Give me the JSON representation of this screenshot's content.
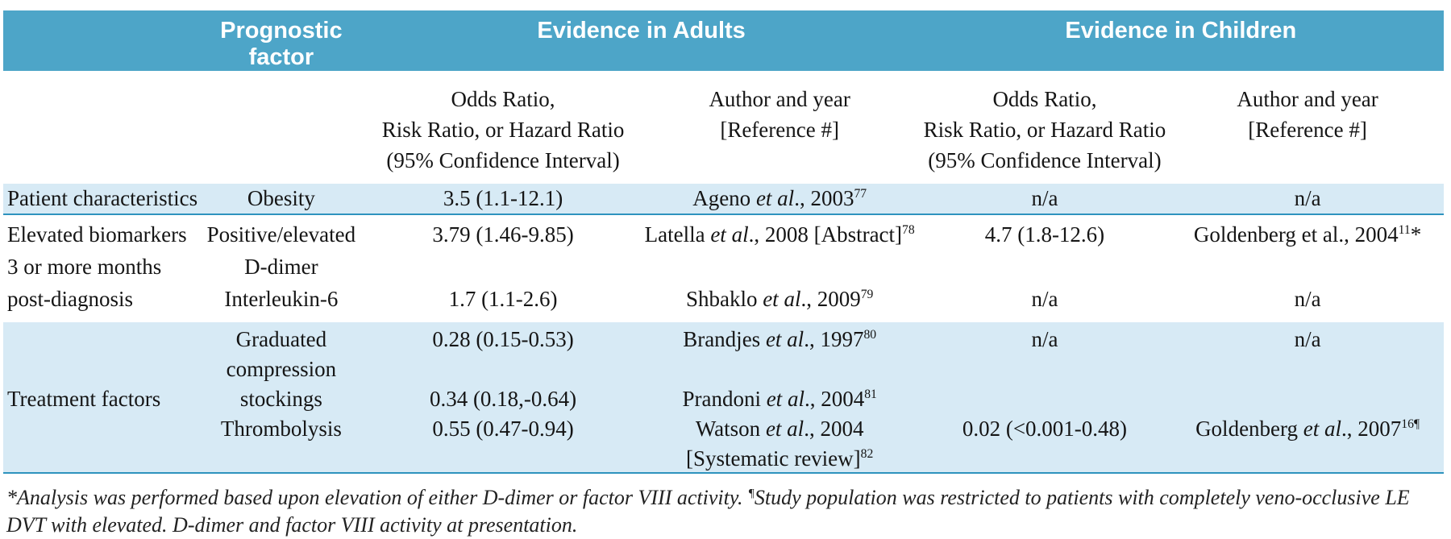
{
  "header": {
    "prognostic_line1": "Prognostic",
    "prognostic_line2": "factor",
    "evidence_adults": "Evidence in Adults",
    "evidence_children": "Evidence in Children"
  },
  "subheader": {
    "ratio_lines": [
      "Odds Ratio,",
      "Risk Ratio, or Hazard Ratio",
      "(95% Confidence Interval)"
    ],
    "author_lines": [
      "Author and year",
      "[Reference #]"
    ]
  },
  "colors": {
    "header_teal": "#4da5c8",
    "row_light_blue": "#d7eaf5",
    "divider_blue": "#2e93be"
  },
  "rows": {
    "patient": {
      "group": "Patient characteristics",
      "factor": "Obesity",
      "or_adults": "3.5 (1.1-12.1)",
      "author_adults": [
        {
          "t": "Ageno "
        },
        {
          "t": "et al",
          "s": "i"
        },
        {
          "t": "., 2003"
        },
        {
          "t": "77",
          "s": "sup"
        }
      ],
      "or_children": "n/a",
      "author_children": "n/a"
    },
    "biomarkers": {
      "lines": [
        {
          "group": "Elevated biomarkers",
          "factor": "Positive/elevated",
          "or_adults": "3.79 (1.46-9.85)",
          "author_adults": [
            {
              "t": "Latella "
            },
            {
              "t": "et al",
              "s": "i"
            },
            {
              "t": "., 2008 [Abstract]"
            },
            {
              "t": "78",
              "s": "sup"
            }
          ],
          "or_children": "4.7 (1.8-12.6)",
          "author_children": [
            {
              "t": "Goldenberg et al., 2004"
            },
            {
              "t": "11",
              "s": "sup"
            },
            {
              "t": "*"
            }
          ]
        },
        {
          "group": "3 or more months",
          "factor": "D-dimer"
        },
        {
          "group": "post-diagnosis",
          "factor": "Interleukin-6",
          "or_adults": "1.7 (1.1-2.6)",
          "author_adults": [
            {
              "t": "Shbaklo "
            },
            {
              "t": "et al",
              "s": "i"
            },
            {
              "t": "., 2009"
            },
            {
              "t": "79",
              "s": "sup"
            }
          ],
          "or_children": "n/a",
          "author_children": "n/a"
        }
      ]
    },
    "treatment": {
      "lines": [
        {
          "factor": "Graduated",
          "or_adults": "0.28 (0.15-0.53)",
          "author_adults": [
            {
              "t": "Brandjes "
            },
            {
              "t": "et al",
              "s": "i"
            },
            {
              "t": "., 1997"
            },
            {
              "t": "80",
              "s": "sup"
            }
          ],
          "or_children": "n/a",
          "author_children": "n/a"
        },
        {
          "factor": "compression"
        },
        {
          "group": "Treatment factors",
          "factor": "stockings",
          "or_adults": "0.34 (0.18,-0.64)",
          "author_adults": [
            {
              "t": "Prandoni "
            },
            {
              "t": "et al",
              "s": "i"
            },
            {
              "t": "., 2004"
            },
            {
              "t": "81",
              "s": "sup"
            }
          ]
        },
        {
          "factor": "Thrombolysis",
          "or_adults": "0.55 (0.47-0.94)",
          "author_adults": [
            {
              "t": "Watson "
            },
            {
              "t": "et al",
              "s": "i"
            },
            {
              "t": "., 2004"
            }
          ],
          "or_children": "0.02 (<0.001-0.48)",
          "author_children": [
            {
              "t": "Goldenberg "
            },
            {
              "t": "et al",
              "s": "i"
            },
            {
              "t": "., 2007"
            },
            {
              "t": "16¶",
              "s": "sup"
            }
          ]
        },
        {
          "author_adults": [
            {
              "t": "[Systematic review]"
            },
            {
              "t": "82",
              "s": "sup"
            }
          ]
        }
      ]
    }
  },
  "footnote": {
    "segments": [
      {
        "t": "*Analysis was performed based upon elevation of either D-dimer or factor VIII activity. "
      },
      {
        "t": "¶",
        "s": "sup"
      },
      {
        "t": "Study population was restricted to patients with completely veno-occlusive LE DVT with elevated. D-dimer and factor VIII activity at presentation."
      }
    ]
  }
}
